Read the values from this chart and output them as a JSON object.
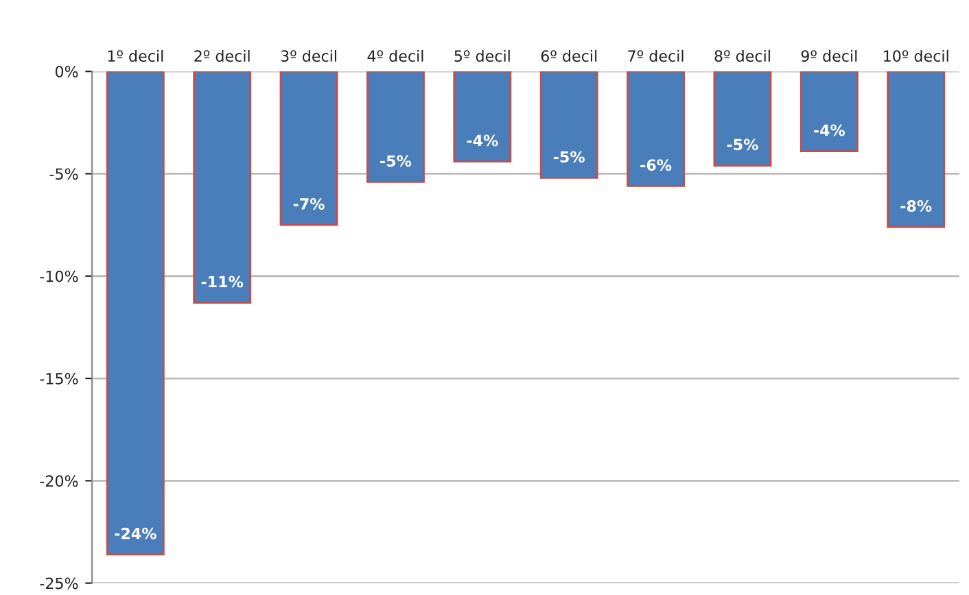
{
  "chart_data": {
    "type": "bar",
    "categories": [
      "1º decil",
      "2º decil",
      "3º decil",
      "4º decil",
      "5º decil",
      "6º decil",
      "7º decil",
      "8º decil",
      "9º decil",
      "10º decil"
    ],
    "values": [
      -23.6,
      -11.3,
      -7.5,
      -5.4,
      -4.4,
      -5.2,
      -5.6,
      -4.6,
      -3.9,
      -7.6
    ],
    "value_labels": [
      "-24%",
      "-11%",
      "-7%",
      "-5%",
      "-4%",
      "-5%",
      "-6%",
      "-5%",
      "-4%",
      "-8%"
    ],
    "color": "#4a7ebb",
    "ylim": [
      -25,
      0
    ],
    "yticks": [
      {
        "value": 0,
        "label": "0%"
      },
      {
        "value": -5,
        "label": "-5%"
      },
      {
        "value": -10,
        "label": "-10%"
      },
      {
        "value": -15,
        "label": "-15%"
      },
      {
        "value": -20,
        "label": "-20%"
      },
      {
        "value": -25,
        "label": "-25%"
      }
    ],
    "grid": "y"
  }
}
